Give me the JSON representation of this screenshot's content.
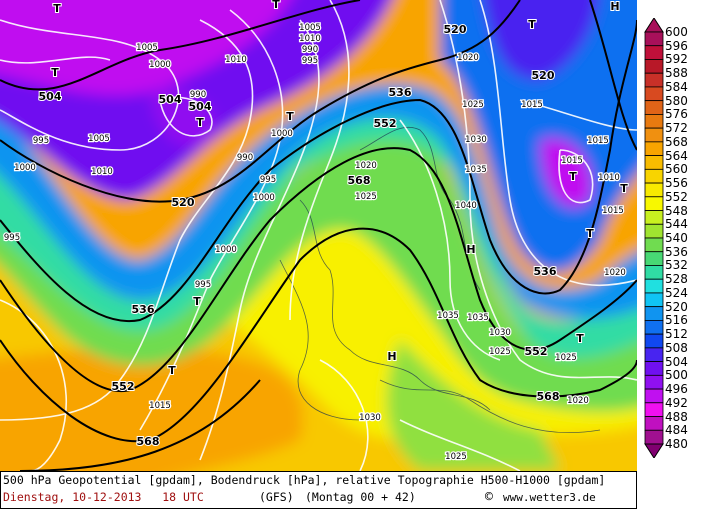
{
  "footer": {
    "line1": "500 hPa Geopotential [gpdam], Bodendruck [hPa], relative Topographie H500-H1000 [gpdam]",
    "date": "Dienstag, 10-12-2013   18 UTC",
    "model": "(GFS)",
    "run": "(Montag 00 + 42)",
    "copyright_icon": "©",
    "site": "www.wetter3.de"
  },
  "legend": {
    "labels": [
      "600",
      "596",
      "592",
      "588",
      "584",
      "580",
      "576",
      "572",
      "568",
      "564",
      "560",
      "556",
      "552",
      "548",
      "544",
      "540",
      "536",
      "532",
      "528",
      "524",
      "520",
      "516",
      "512",
      "508",
      "504",
      "500",
      "496",
      "492",
      "488",
      "484",
      "480"
    ],
    "colors": [
      "#a8105a",
      "#c0103a",
      "#b81828",
      "#c83028",
      "#d84a20",
      "#e06418",
      "#e87a10",
      "#f09010",
      "#f8a400",
      "#f8bc00",
      "#f8d400",
      "#f8ea00",
      "#f8f800",
      "#c8f020",
      "#a0e430",
      "#70dc50",
      "#48d874",
      "#30dca4",
      "#20e0e0",
      "#10c4f4",
      "#1094f0",
      "#1070f0",
      "#1048f0",
      "#4824f0",
      "#7010f0",
      "#9010f0",
      "#c010f0",
      "#f010f0",
      "#c010c0",
      "#a01090",
      "#800070"
    ]
  },
  "map": {
    "geopotential_labels": [
      "504",
      "504",
      "504",
      "520",
      "520",
      "536",
      "552",
      "568",
      "520",
      "536",
      "552",
      "568",
      "536",
      "552",
      "568"
    ],
    "pressure_labels": [
      "1005",
      "1000",
      "1010",
      "990",
      "995",
      "1005",
      "1000",
      "995",
      "990",
      "1010",
      "995",
      "1005",
      "1010",
      "990",
      "995",
      "1000",
      "1000",
      "995",
      "1020",
      "1025",
      "1030",
      "1035",
      "1040",
      "1015",
      "1020",
      "1025",
      "1015",
      "1010",
      "1015",
      "1020",
      "1035",
      "1035",
      "1030",
      "1025",
      "1030",
      "1025",
      "1000",
      "1015",
      "1020",
      "1025",
      "1015"
    ],
    "low_marker": "T",
    "high_marker": "H"
  }
}
